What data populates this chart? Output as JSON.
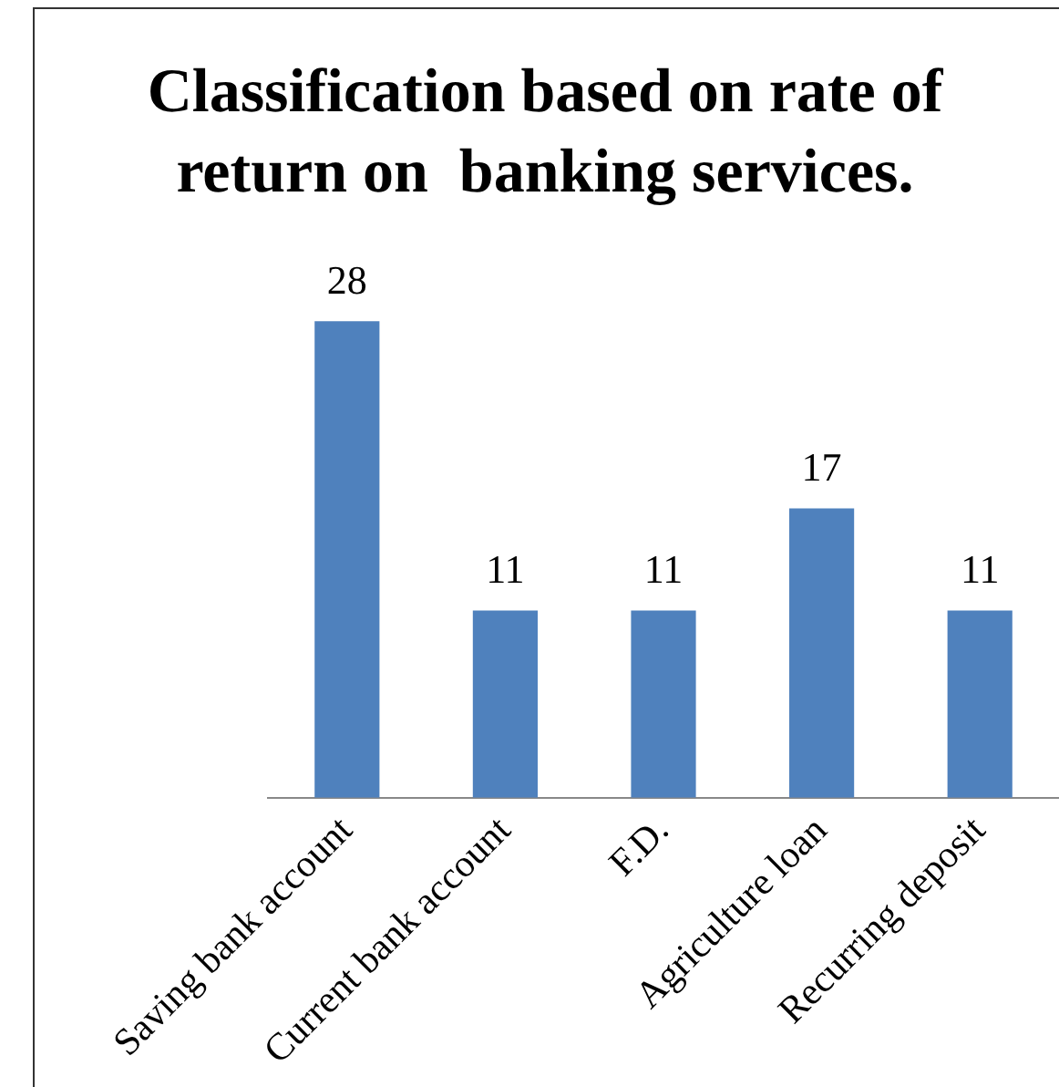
{
  "chart_data": {
    "type": "bar",
    "title": "Classification based on rate of return on  banking services.",
    "categories": [
      "Saving bank account",
      "Current bank account",
      "F.D.",
      "Agriculture loan",
      "Recurring deposit"
    ],
    "values": [
      28,
      11,
      11,
      17,
      11
    ],
    "color": "#4f81bd",
    "data_labels": true,
    "grid": false,
    "legend": false
  }
}
